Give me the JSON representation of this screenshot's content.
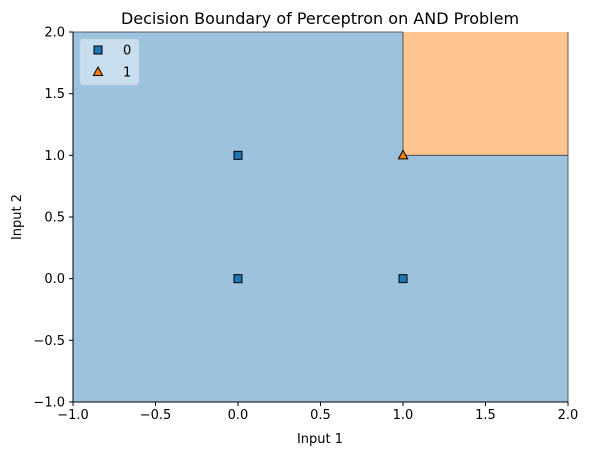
{
  "chart_data": {
    "type": "scatter",
    "title": "Decision Boundary of Perceptron on AND Problem",
    "xlabel": "Input 1",
    "ylabel": "Input 2",
    "xlim": [
      -1.0,
      2.0
    ],
    "ylim": [
      -1.0,
      2.0
    ],
    "xticks": [
      {
        "value": -1.0,
        "label": "−1.0"
      },
      {
        "value": -0.5,
        "label": "−0.5"
      },
      {
        "value": 0.0,
        "label": "0.0"
      },
      {
        "value": 0.5,
        "label": "0.5"
      },
      {
        "value": 1.0,
        "label": "1.0"
      },
      {
        "value": 1.5,
        "label": "1.5"
      },
      {
        "value": 2.0,
        "label": "2.0"
      }
    ],
    "yticks": [
      {
        "value": -1.0,
        "label": "−1.0"
      },
      {
        "value": -0.5,
        "label": "−0.5"
      },
      {
        "value": 0.0,
        "label": "0.0"
      },
      {
        "value": 0.5,
        "label": "0.5"
      },
      {
        "value": 1.0,
        "label": "1.0"
      },
      {
        "value": 1.5,
        "label": "1.5"
      },
      {
        "value": 2.0,
        "label": "2.0"
      }
    ],
    "grid": false,
    "legend_position": "top-left",
    "decision_regions": [
      {
        "class": "1",
        "x_range": [
          1.0,
          2.0
        ],
        "y_range": [
          1.0,
          2.0
        ],
        "color": "#ffc591"
      },
      {
        "class": "0",
        "rest_of_plot": true,
        "color": "#9cc2de"
      }
    ],
    "series": [
      {
        "name": "0",
        "marker": "square",
        "color": "#1f77b4",
        "points": [
          [
            0,
            0
          ],
          [
            0,
            1
          ],
          [
            1,
            0
          ]
        ]
      },
      {
        "name": "1",
        "marker": "triangle",
        "color": "#ff7f0e",
        "points": [
          [
            1,
            1
          ]
        ]
      }
    ]
  }
}
